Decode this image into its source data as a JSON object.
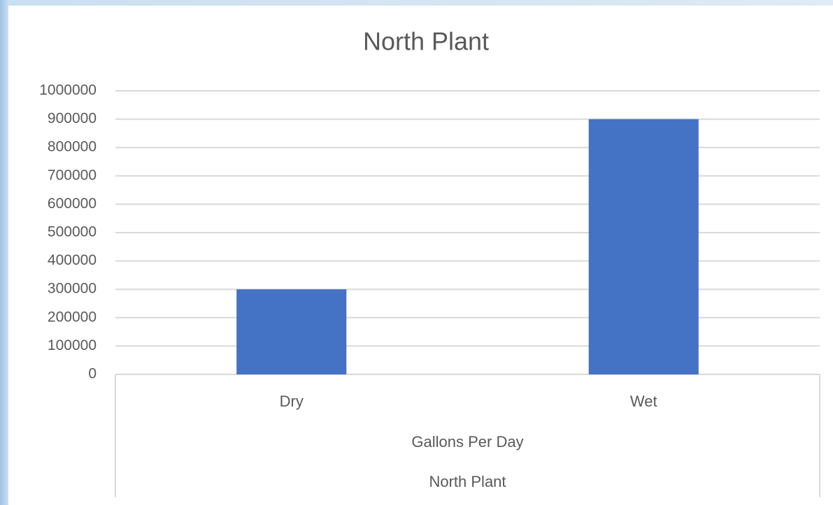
{
  "chart_data": {
    "type": "bar",
    "title": "North Plant",
    "categories": [
      "Dry",
      "Wet"
    ],
    "values": [
      300000,
      900000
    ],
    "color": "#4472c4",
    "category_levels": [
      "Gallons Per Day",
      "North Plant"
    ],
    "ylim": [
      0,
      1000000
    ],
    "yticks": [
      0,
      100000,
      200000,
      300000,
      400000,
      500000,
      600000,
      700000,
      800000,
      900000,
      1000000
    ],
    "grid": true
  }
}
